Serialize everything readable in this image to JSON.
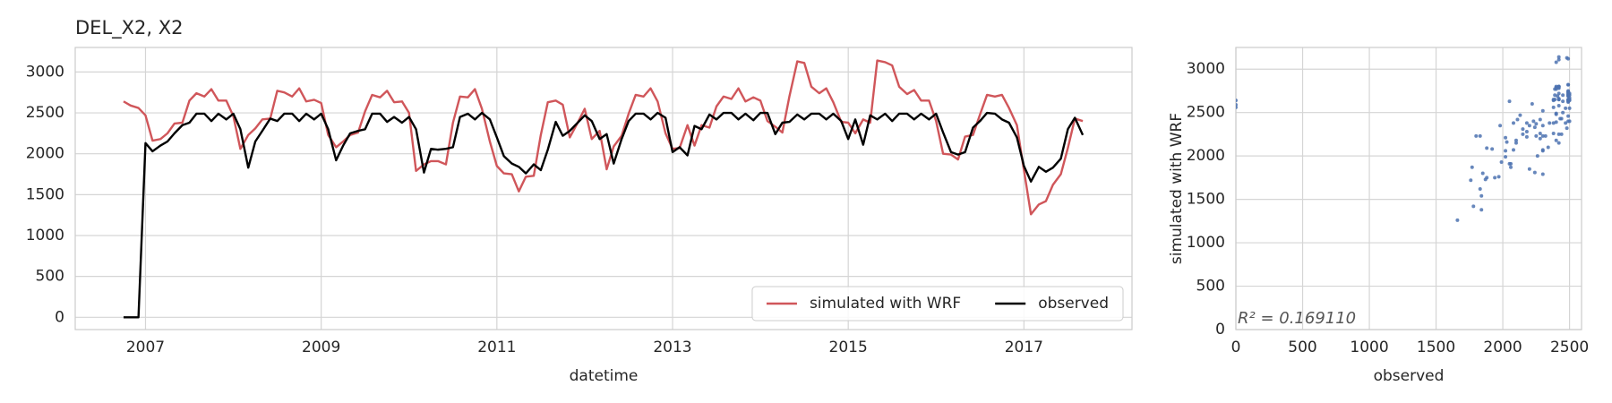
{
  "chart_data": [
    {
      "type": "line",
      "title": "DEL_X2, X2",
      "xlabel": "datetime",
      "x": [
        2006.75,
        2006.83,
        2006.92,
        2007,
        2007.08,
        2007.17,
        2007.25,
        2007.33,
        2007.42,
        2007.5,
        2007.58,
        2007.67,
        2007.75,
        2007.83,
        2007.92,
        2008,
        2008.08,
        2008.17,
        2008.25,
        2008.33,
        2008.42,
        2008.5,
        2008.58,
        2008.67,
        2008.75,
        2008.83,
        2008.92,
        2009,
        2009.08,
        2009.17,
        2009.25,
        2009.33,
        2009.42,
        2009.5,
        2009.58,
        2009.67,
        2009.75,
        2009.83,
        2009.92,
        2010,
        2010.08,
        2010.17,
        2010.25,
        2010.33,
        2010.42,
        2010.5,
        2010.58,
        2010.67,
        2010.75,
        2010.83,
        2010.92,
        2011,
        2011.08,
        2011.17,
        2011.25,
        2011.33,
        2011.42,
        2011.5,
        2011.58,
        2011.67,
        2011.75,
        2011.83,
        2011.92,
        2012,
        2012.08,
        2012.17,
        2012.25,
        2012.33,
        2012.42,
        2012.5,
        2012.58,
        2012.67,
        2012.75,
        2012.83,
        2012.92,
        2013,
        2013.08,
        2013.17,
        2013.25,
        2013.33,
        2013.42,
        2013.5,
        2013.58,
        2013.67,
        2013.75,
        2013.83,
        2013.92,
        2014,
        2014.08,
        2014.17,
        2014.25,
        2014.33,
        2014.42,
        2014.5,
        2014.58,
        2014.67,
        2014.75,
        2014.83,
        2014.92,
        2015,
        2015.08,
        2015.17,
        2015.25,
        2015.33,
        2015.42,
        2015.5,
        2015.58,
        2015.67,
        2015.75,
        2015.83,
        2015.92,
        2016,
        2016.08,
        2016.17,
        2016.25,
        2016.33,
        2016.42,
        2016.5,
        2016.58,
        2016.67,
        2016.75,
        2016.83,
        2016.92,
        2017,
        2017.08,
        2017.17,
        2017.25,
        2017.33,
        2017.42,
        2017.5,
        2017.58,
        2017.67
      ],
      "series": [
        {
          "name": "simulated with WRF",
          "color": "#d0565a",
          "values": [
            2640,
            2590,
            2560,
            2470,
            2160,
            2180,
            2250,
            2370,
            2380,
            2650,
            2740,
            2700,
            2790,
            2650,
            2650,
            2460,
            2060,
            2230,
            2310,
            2420,
            2430,
            2770,
            2750,
            2700,
            2800,
            2640,
            2660,
            2620,
            2230,
            2080,
            2150,
            2230,
            2260,
            2520,
            2720,
            2690,
            2770,
            2630,
            2640,
            2500,
            1790,
            1870,
            1910,
            1910,
            1870,
            2380,
            2700,
            2690,
            2790,
            2550,
            2150,
            1850,
            1760,
            1750,
            1540,
            1720,
            1730,
            2230,
            2630,
            2650,
            2600,
            2200,
            2380,
            2550,
            2180,
            2280,
            1810,
            2090,
            2220,
            2490,
            2720,
            2700,
            2800,
            2640,
            2250,
            2060,
            2070,
            2350,
            2100,
            2350,
            2320,
            2580,
            2700,
            2670,
            2800,
            2640,
            2690,
            2650,
            2400,
            2330,
            2260,
            2700,
            3130,
            3110,
            2820,
            2740,
            2800,
            2630,
            2390,
            2380,
            2250,
            2420,
            2380,
            3140,
            3120,
            3080,
            2820,
            2730,
            2780,
            2650,
            2650,
            2400,
            2000,
            1990,
            1930,
            2210,
            2230,
            2480,
            2720,
            2700,
            2720,
            2560,
            2350,
            1800,
            1260,
            1380,
            1420,
            1620,
            1750,
            2070,
            2430,
            2400
          ]
        },
        {
          "name": "observed",
          "color": "#000000",
          "values": [
            0,
            0,
            0,
            2130,
            2030,
            2100,
            2150,
            2250,
            2350,
            2380,
            2490,
            2490,
            2400,
            2490,
            2420,
            2490,
            2300,
            1830,
            2150,
            2280,
            2430,
            2400,
            2490,
            2490,
            2400,
            2490,
            2420,
            2490,
            2300,
            1920,
            2100,
            2250,
            2280,
            2300,
            2490,
            2490,
            2390,
            2450,
            2380,
            2450,
            2300,
            1770,
            2060,
            2050,
            2060,
            2080,
            2450,
            2490,
            2420,
            2500,
            2420,
            2200,
            1970,
            1880,
            1840,
            1760,
            1870,
            1800,
            2050,
            2390,
            2220,
            2280,
            2380,
            2470,
            2400,
            2180,
            2240,
            1880,
            2180,
            2400,
            2490,
            2490,
            2420,
            2500,
            2440,
            2020,
            2080,
            1980,
            2340,
            2300,
            2480,
            2420,
            2500,
            2500,
            2420,
            2490,
            2410,
            2500,
            2500,
            2240,
            2380,
            2390,
            2480,
            2420,
            2490,
            2490,
            2420,
            2490,
            2400,
            2180,
            2420,
            2110,
            2470,
            2420,
            2490,
            2400,
            2490,
            2490,
            2420,
            2490,
            2420,
            2490,
            2260,
            2020,
            1990,
            2020,
            2320,
            2400,
            2500,
            2490,
            2420,
            2380,
            2200,
            1850,
            1660,
            1840,
            1780,
            1830,
            1940,
            2300,
            2440,
            2230
          ]
        }
      ],
      "xlim": [
        2006.2,
        2018.23
      ],
      "xticks": [
        2007,
        2009,
        2011,
        2013,
        2015,
        2017
      ],
      "ylim": [
        -150,
        3300
      ],
      "yticks": [
        0,
        500,
        1000,
        1500,
        2000,
        2500,
        3000
      ],
      "grid": true,
      "legend": "lower right"
    },
    {
      "type": "scatter",
      "xlabel": "observed",
      "ylabel": "simulated with WRF",
      "annotation": "R² = 0.169110",
      "color": "#4c72b0",
      "xlim": [
        0,
        2590
      ],
      "xticks": [
        0,
        500,
        1000,
        1500,
        2000,
        2500
      ],
      "ylim": [
        0,
        3250
      ],
      "yticks": [
        0,
        500,
        1000,
        1500,
        2000,
        2500,
        3000
      ],
      "grid": true
    }
  ]
}
